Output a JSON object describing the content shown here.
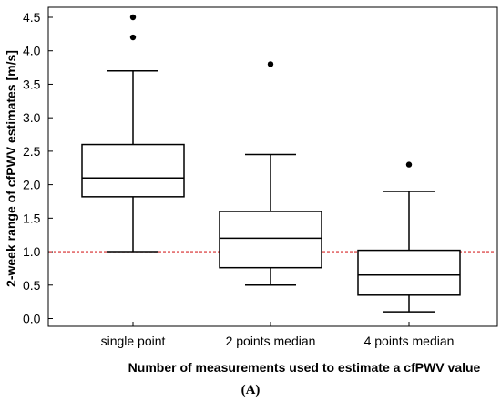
{
  "chart_data": {
    "type": "box",
    "categories": [
      "single point",
      "2 points median",
      "4 points median"
    ],
    "boxes": [
      {
        "category": "single point",
        "whisker_low": 1.0,
        "q1": 1.82,
        "median": 2.1,
        "q3": 2.6,
        "whisker_high": 3.7,
        "outliers": [
          4.2,
          4.5
        ]
      },
      {
        "category": "2 points median",
        "whisker_low": 0.5,
        "q1": 0.76,
        "median": 1.2,
        "q3": 1.6,
        "whisker_high": 2.45,
        "outliers": [
          3.8
        ]
      },
      {
        "category": "4 points median",
        "whisker_low": 0.1,
        "q1": 0.35,
        "median": 0.65,
        "q3": 1.02,
        "whisker_high": 1.9,
        "outliers": [
          2.3
        ]
      }
    ],
    "reference_line": {
      "y": 1.0,
      "color": "#d62728",
      "style": "dashed"
    },
    "ylim": [
      -0.1,
      4.55
    ],
    "yticks": [
      "0.0",
      "0.5",
      "1.0",
      "1.5",
      "2.0",
      "2.5",
      "3.0",
      "3.5",
      "4.0",
      "4.5"
    ],
    "xlabel": "Number of measurements used to estimate a cfPWV value",
    "ylabel": "2-week range of cfPWV estimates [m/s]",
    "panel_label": "(A)",
    "grid": false
  }
}
